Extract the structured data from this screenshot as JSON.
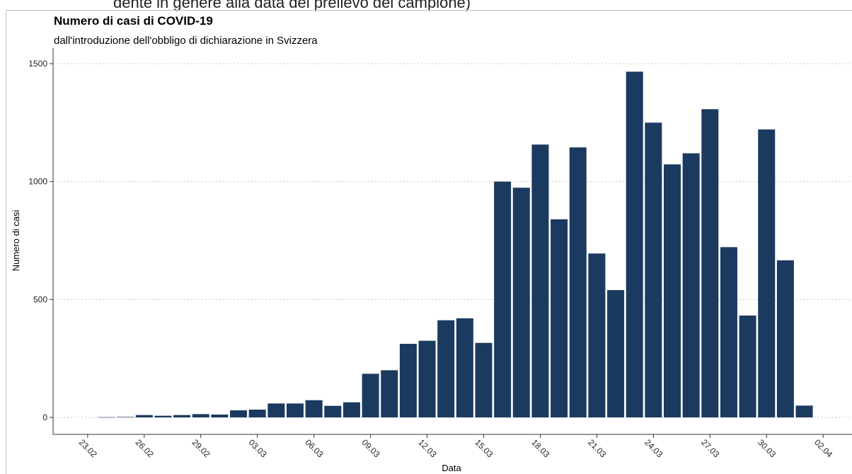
{
  "caption": "dente in genere alla data del prelievo del campione)",
  "chart_data": {
    "type": "bar",
    "title": "Numero di casi di COVID-19",
    "subtitle": "dall'introduzione dell'obbligo di dichiarazione in Svizzera",
    "xlabel": "Data",
    "ylabel": "Numero di casi",
    "ylim": [
      0,
      1570
    ],
    "yticks": [
      0,
      500,
      1000,
      1500
    ],
    "grid": "horizontal dotted",
    "color": "#1b3a5f",
    "xtick_labels": [
      "23.02",
      "26.02",
      "29.02",
      "03.03",
      "06.03",
      "09.03",
      "12.03",
      "15.03",
      "18.03",
      "21.03",
      "24.03",
      "27.03",
      "30.03",
      "02.04"
    ],
    "categories": [
      "24.02",
      "25.02",
      "26.02",
      "27.02",
      "28.02",
      "29.02",
      "01.03",
      "02.03",
      "03.03",
      "04.03",
      "05.03",
      "06.03",
      "07.03",
      "08.03",
      "09.03",
      "10.03",
      "11.03",
      "12.03",
      "13.03",
      "14.03",
      "15.03",
      "16.03",
      "17.03",
      "18.03",
      "19.03",
      "20.03",
      "21.03",
      "22.03",
      "23.03",
      "24.03",
      "25.03",
      "26.03",
      "27.03",
      "28.03",
      "29.03",
      "30.03",
      "31.03",
      "01.04"
    ],
    "values": [
      1,
      2,
      10,
      7,
      10,
      14,
      12,
      30,
      33,
      59,
      59,
      73,
      49,
      64,
      185,
      200,
      312,
      325,
      412,
      420,
      316,
      1000,
      974,
      1157,
      840,
      1145,
      695,
      540,
      1466,
      1250,
      1073,
      1120,
      1307,
      722,
      432,
      1221,
      666,
      50
    ]
  }
}
